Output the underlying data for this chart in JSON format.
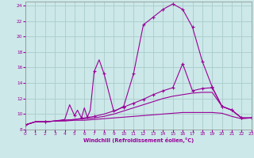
{
  "bg_color": "#cce8e8",
  "grid_color": "#aacccc",
  "line_color": "#990099",
  "xlabel": "Windchill (Refroidissement éolien,°C)",
  "xlim": [
    0,
    23
  ],
  "ylim": [
    8,
    24.5
  ],
  "yticks": [
    8,
    10,
    12,
    14,
    16,
    18,
    20,
    22,
    24
  ],
  "xticks": [
    0,
    1,
    2,
    3,
    4,
    5,
    6,
    7,
    8,
    9,
    10,
    11,
    12,
    13,
    14,
    15,
    16,
    17,
    18,
    19,
    20,
    21,
    22,
    23
  ],
  "line_a": {
    "x": [
      0,
      1,
      2,
      3,
      4,
      5,
      6,
      7,
      8,
      9,
      10,
      11,
      12,
      13,
      14,
      15,
      16,
      17,
      18,
      19,
      20,
      21,
      22,
      23
    ],
    "y": [
      8.6,
      9.0,
      9.0,
      9.1,
      9.1,
      9.2,
      9.2,
      9.3,
      9.4,
      9.5,
      9.6,
      9.7,
      9.8,
      9.9,
      10.0,
      10.1,
      10.2,
      10.2,
      10.2,
      10.2,
      10.1,
      9.7,
      9.4,
      9.5
    ]
  },
  "line_b": {
    "x": [
      0,
      1,
      2,
      3,
      4,
      5,
      6,
      7,
      8,
      9,
      10,
      11,
      12,
      13,
      14,
      15,
      16,
      17,
      18,
      19,
      20,
      21,
      22,
      23
    ],
    "y": [
      8.6,
      9.0,
      9.0,
      9.1,
      9.2,
      9.3,
      9.4,
      9.5,
      9.7,
      10.0,
      10.4,
      10.8,
      11.2,
      11.6,
      12.0,
      12.3,
      12.5,
      12.7,
      12.8,
      12.8,
      11.0,
      10.5,
      9.5,
      9.5
    ]
  },
  "line_c": {
    "x": [
      0,
      1,
      2,
      3,
      4,
      5,
      6,
      7,
      8,
      9,
      10,
      11,
      12,
      13,
      14,
      15,
      16,
      17,
      18,
      19,
      20,
      21,
      22,
      23
    ],
    "y": [
      8.6,
      9.0,
      9.0,
      9.1,
      9.2,
      9.3,
      9.5,
      9.7,
      10.0,
      10.4,
      10.9,
      11.4,
      11.9,
      12.5,
      13.0,
      13.4,
      16.5,
      13.0,
      13.3,
      13.4,
      11.0,
      10.5,
      9.5,
      9.5
    ],
    "marker_x": [
      0,
      2,
      7,
      9,
      10,
      11,
      12,
      13,
      14,
      15,
      16,
      17,
      18,
      19,
      20,
      21,
      22,
      23
    ],
    "marker_y": [
      8.6,
      9.0,
      9.7,
      10.4,
      10.9,
      11.4,
      11.9,
      12.5,
      13.0,
      13.4,
      16.5,
      13.0,
      13.3,
      13.4,
      11.0,
      10.5,
      9.5,
      9.5
    ]
  },
  "line_d": {
    "x": [
      0,
      1,
      2,
      3,
      4,
      4.5,
      5,
      5.3,
      5.7,
      6.0,
      6.3,
      6.6,
      7.0,
      7.5,
      8,
      9,
      10,
      11,
      12,
      13,
      14,
      15,
      16,
      17,
      18,
      19,
      20,
      21,
      22,
      23
    ],
    "y": [
      8.6,
      9.0,
      9.0,
      9.1,
      9.3,
      11.2,
      9.8,
      10.5,
      9.5,
      10.8,
      9.6,
      10.5,
      15.5,
      17.0,
      15.2,
      10.3,
      11.0,
      15.2,
      21.5,
      22.5,
      23.5,
      24.2,
      23.5,
      21.2,
      16.8,
      13.5,
      11.0,
      10.5,
      9.5,
      9.5
    ],
    "marker_x": [
      0,
      2,
      5,
      5.7,
      6.3,
      7.0,
      8,
      10,
      11,
      12,
      13,
      14,
      15,
      16,
      17,
      18,
      19,
      20,
      21,
      22,
      23
    ],
    "marker_y": [
      8.6,
      9.0,
      9.8,
      9.5,
      9.6,
      15.5,
      15.2,
      11.0,
      15.2,
      21.5,
      22.5,
      23.5,
      24.2,
      23.5,
      21.2,
      16.8,
      13.5,
      11.0,
      10.5,
      9.5,
      9.5
    ]
  }
}
